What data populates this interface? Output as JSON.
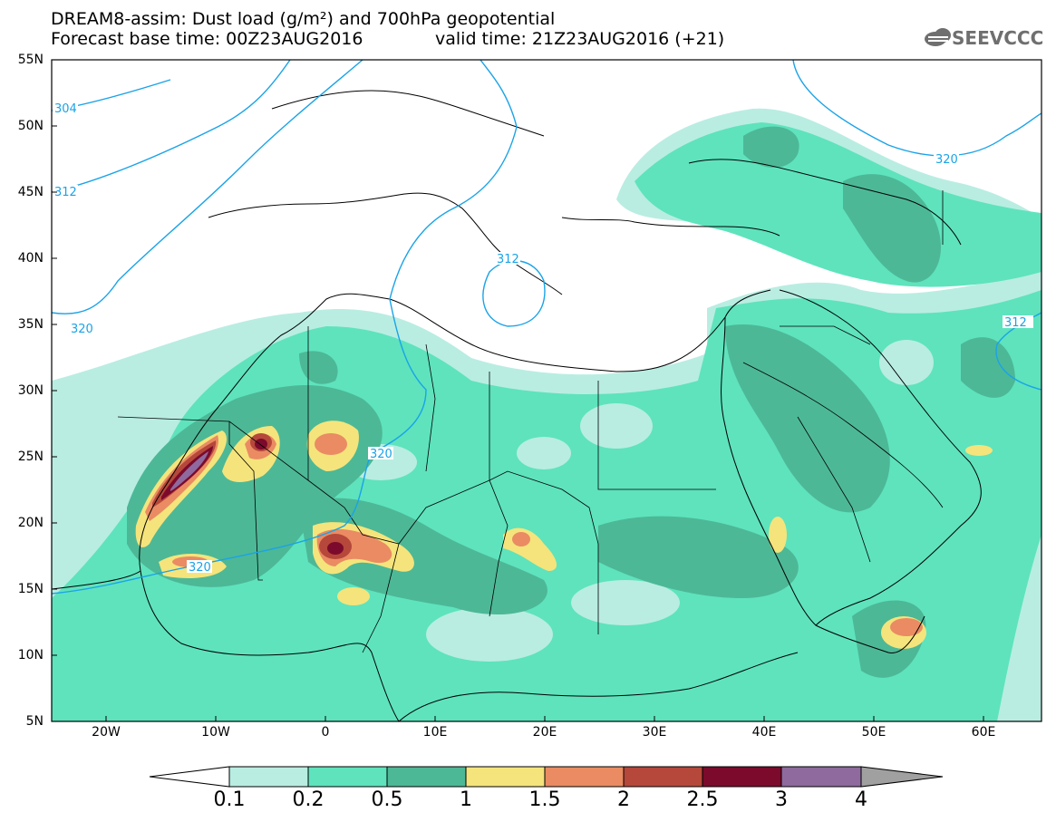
{
  "header": {
    "title_line1": "DREAM8-assim: Dust load (g/m²) and 700hPa geopotential",
    "title_line2": "Forecast base time: 00Z23AUG2016",
    "valid_time": "valid time: 21Z23AUG2016 (+21)",
    "logo_text": "SEEVCCC"
  },
  "axes": {
    "lat_labels": [
      "55N",
      "50N",
      "45N",
      "40N",
      "35N",
      "30N",
      "25N",
      "20N",
      "15N",
      "10N",
      "5N"
    ],
    "lon_labels": [
      "20W",
      "10W",
      "0",
      "10E",
      "20E",
      "30E",
      "40E",
      "50E",
      "60E"
    ]
  },
  "contours": {
    "geopotential_labels": [
      "304",
      "312",
      "320",
      "320",
      "312",
      "320",
      "320",
      "312"
    ]
  },
  "colorbar": {
    "labels": [
      "0.1",
      "0.2",
      "0.5",
      "1",
      "1.5",
      "2",
      "2.5",
      "3",
      "4"
    ],
    "colors": [
      "#b9ede2",
      "#5ee3bd",
      "#4db896",
      "#f5e47b",
      "#ea8b63",
      "#b5483a",
      "#7c0a2c",
      "#8e6a9e"
    ],
    "arrow_low": "#ffffff",
    "arrow_high": "#a0a0a0"
  },
  "palette": {
    "contour": "#1aa3e8",
    "border": "#000000"
  }
}
